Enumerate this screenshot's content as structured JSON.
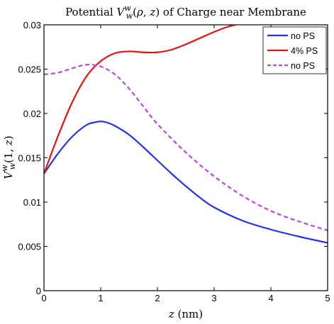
{
  "chart_data": {
    "type": "line",
    "title": "Potential V_w^w(ρ, z) of Charge near Membrane",
    "xlabel": "z (nm)",
    "ylabel": "V_w^w(1, z)",
    "xlim": [
      0,
      5
    ],
    "ylim": [
      0,
      0.03
    ],
    "x_ticks": [
      "0",
      "1",
      "2",
      "3",
      "4",
      "5"
    ],
    "y_ticks": [
      "0",
      "0.005",
      "0.01",
      "0.015",
      "0.02",
      "0.025",
      "0.03"
    ],
    "grid": false,
    "legend_position": "top-right",
    "series": [
      {
        "name": "no PS",
        "color": "#2233ee",
        "dash": "solid",
        "x": [
          0,
          0.25,
          0.5,
          0.75,
          0.9,
          1.0,
          1.1,
          1.25,
          1.5,
          1.75,
          2.0,
          2.25,
          2.5,
          2.75,
          3.0,
          3.5,
          4.0,
          4.5,
          5.0
        ],
        "y": [
          0.0132,
          0.0155,
          0.0174,
          0.0187,
          0.019,
          0.0191,
          0.019,
          0.0186,
          0.0176,
          0.0162,
          0.0147,
          0.0132,
          0.0118,
          0.0105,
          0.0094,
          0.0079,
          0.0069,
          0.0061,
          0.0054
        ]
      },
      {
        "name": "4% PS",
        "color": "#ee1111",
        "dash": "solid",
        "x": [
          0,
          0.25,
          0.5,
          0.75,
          1.0,
          1.25,
          1.5,
          1.75,
          2.0,
          2.25,
          2.5,
          2.75,
          3.0,
          3.25,
          3.5
        ],
        "y": [
          0.0132,
          0.0175,
          0.0213,
          0.0242,
          0.0259,
          0.0268,
          0.027,
          0.0269,
          0.0269,
          0.0272,
          0.0278,
          0.0285,
          0.0292,
          0.0298,
          0.0302
        ]
      },
      {
        "name": "no PS",
        "color": "#bb44ee",
        "dash": "dashed",
        "x": [
          0,
          0.25,
          0.5,
          0.75,
          1.0,
          1.25,
          1.5,
          1.75,
          2.0,
          2.5,
          3.0,
          3.5,
          4.0,
          4.5,
          5.0
        ],
        "y": [
          0.0244,
          0.0246,
          0.0251,
          0.0255,
          0.0253,
          0.0244,
          0.0228,
          0.0208,
          0.0188,
          0.0156,
          0.0129,
          0.0107,
          0.009,
          0.0078,
          0.0068
        ]
      }
    ]
  }
}
